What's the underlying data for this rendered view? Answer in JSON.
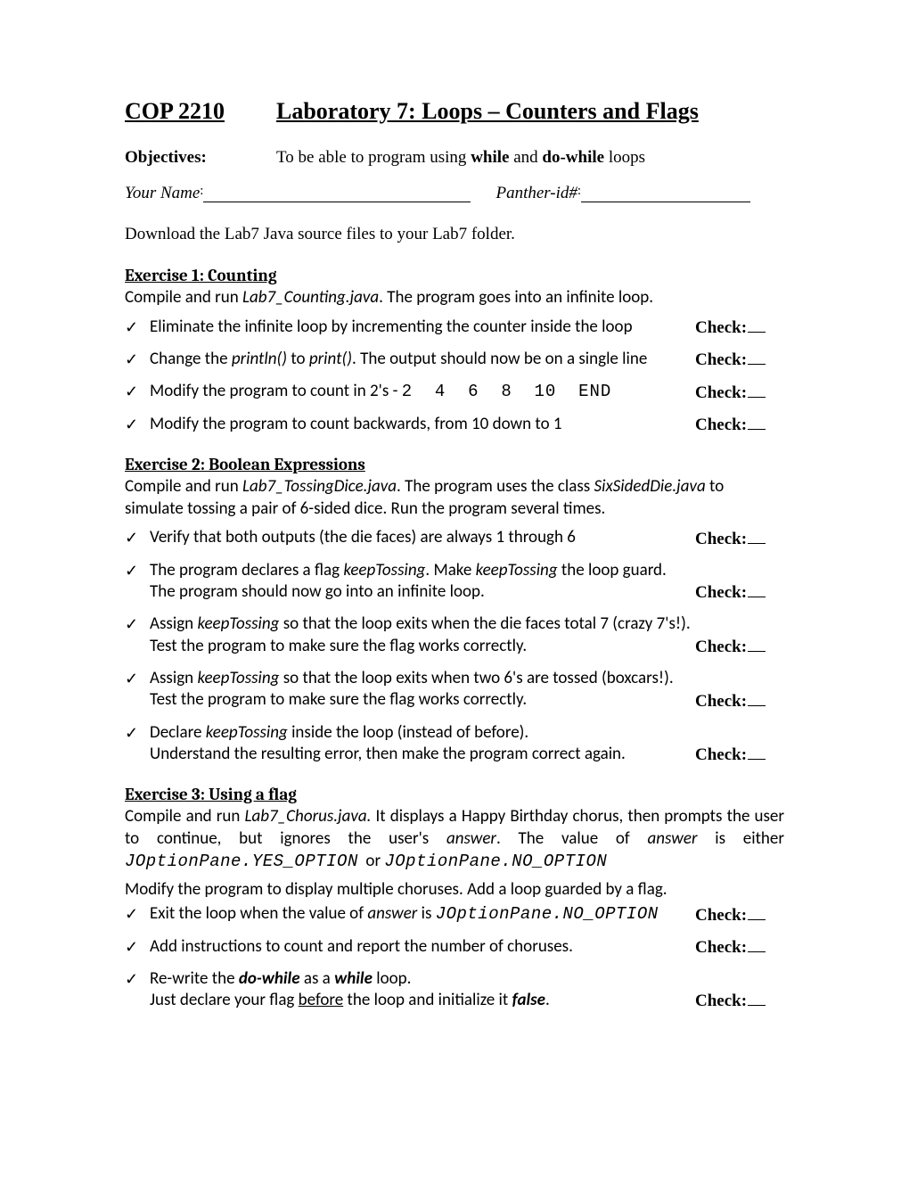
{
  "header": {
    "course": "COP 2210",
    "lab_title": "Laboratory 7: Loops – Counters and Flags"
  },
  "objectives": {
    "label": "Objectives:",
    "pre": "To be able to program using ",
    "kw1": "while",
    "mid": " and ",
    "kw2": "do-while",
    "post": " loops"
  },
  "name_row": {
    "your_name": "Your Name",
    "colon1": ":",
    "panther": "Panther-id#",
    "colon2": ":"
  },
  "download": "Download the Lab7 Java source files to your Lab7 folder.",
  "check_label": "Check:",
  "tick": "✓",
  "ex1": {
    "title": "Exercise 1: Counting",
    "intro_pre": "Compile and run ",
    "intro_file": "Lab7_Counting.java",
    "intro_post": ". The program goes into an infinite loop.",
    "tasks": [
      {
        "html": "Eliminate the infinite loop by incrementing the counter inside the loop"
      },
      {
        "html": "Change the <span class='it'>println()</span> to <span class='it'>print()</span>. The output should now be on a single line"
      },
      {
        "html": "Modify the program to count in 2's - <span class='mono'>2&nbsp;&nbsp;4&nbsp;&nbsp;6&nbsp;&nbsp;8&nbsp;&nbsp;10&nbsp;&nbsp;END</span>"
      },
      {
        "html": "Modify the program to count backwards, from 10 down to 1"
      }
    ]
  },
  "ex2": {
    "title": "Exercise 2: Boolean Expressions",
    "intro_html": "Compile and run <span class='it'>Lab7_TossingDice.java</span>. The program uses the class <span class='it'>SixSidedDie.java</span> to simulate tossing a pair of 6-sided dice. Run the program several times.",
    "tasks": [
      {
        "html": "Verify that both outputs (the die faces) are always 1 through 6"
      },
      {
        "html": "The program declares a flag <span class='it'>keepTossing</span>. Make <span class='it'>keepTossing</span> the loop guard.<br>The program should now go into an infinite loop."
      },
      {
        "html": "Assign <span class='it'>keepTossing</span> so that the loop exits when the die faces total 7 (crazy 7's!).<br>Test the program to make sure the flag works correctly."
      },
      {
        "html": "Assign <span class='it'>keepTossing</span> so that the loop exits when two 6's are tossed (boxcars!).<br>Test the program to make sure the flag works correctly."
      },
      {
        "html": "Declare <span class='it'>keepTossing</span> inside the loop (instead of before).<br>Understand the resulting error, then make the program correct again."
      }
    ]
  },
  "ex3": {
    "title": "Exercise 3: Using a flag",
    "intro_html": "Compile and run <span class='it'>Lab7_Chorus.java.</span> It displays a Happy Birthday chorus, then prompts the user to continue, but ignores the user's <span class='it'>answer</span>. The value of <span class='it'>answer</span> is either <span class='mono'>JOptionPane.YES_OPTION</span> &nbsp;or <span class='mono'>JOptionPane.NO_OPTION</span>",
    "subtext": "Modify the program to display multiple choruses. Add a loop guarded by a flag.",
    "tasks": [
      {
        "html": "Exit the loop when the value of <span class='it'>answer</span> is <span class='mono-it'>JOptionPane.NO_OPTION</span>"
      },
      {
        "html": "Add instructions to count and report the number of choruses."
      },
      {
        "html": "Re-write the <span class='bi'>do-while</span> as a <span class='bi'>while</span> loop.<br>Just declare your flag <span class='u'>before</span> the loop and initialize it <span class='bi'>false</span>."
      }
    ]
  }
}
